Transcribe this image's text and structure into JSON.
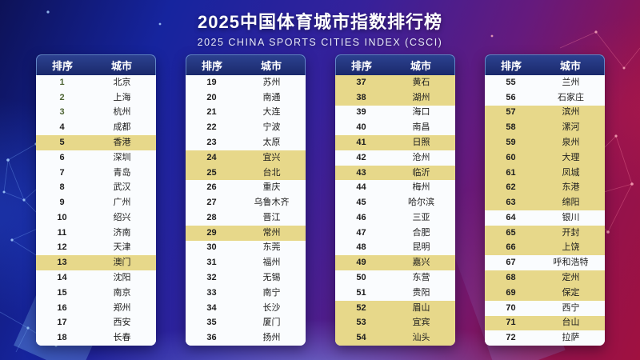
{
  "colors": {
    "title_text": "#ffffff",
    "header_text": "#ffffff",
    "header_bg_top": "#2c4190",
    "header_bg_bottom": "#1a296b",
    "row_bg": "#fafcfe",
    "row_text": "#1e1e1e",
    "highlight_bg": "#e7d88a",
    "top3_rank": "#4d6434"
  },
  "chart_data": {
    "type": "table",
    "title": "2025中国体育城市指数排行榜",
    "subtitle": "2025 CHINA SPORTS CITIES INDEX (CSCI)",
    "columns": [
      "排序",
      "城市"
    ],
    "legend_note": "mark: 'gold' = yellow highlighted row, 'top' = green rank number",
    "tables": [
      {
        "rows": [
          {
            "rank": "1",
            "city": "北京",
            "mark": "top"
          },
          {
            "rank": "2",
            "city": "上海",
            "mark": "top"
          },
          {
            "rank": "3",
            "city": "杭州",
            "mark": "top"
          },
          {
            "rank": "4",
            "city": "成都",
            "mark": ""
          },
          {
            "rank": "5",
            "city": "香港",
            "mark": "gold"
          },
          {
            "rank": "6",
            "city": "深圳",
            "mark": ""
          },
          {
            "rank": "7",
            "city": "青岛",
            "mark": ""
          },
          {
            "rank": "8",
            "city": "武汉",
            "mark": ""
          },
          {
            "rank": "9",
            "city": "广州",
            "mark": ""
          },
          {
            "rank": "10",
            "city": "绍兴",
            "mark": ""
          },
          {
            "rank": "11",
            "city": "济南",
            "mark": ""
          },
          {
            "rank": "12",
            "city": "天津",
            "mark": ""
          },
          {
            "rank": "13",
            "city": "澳门",
            "mark": "gold"
          },
          {
            "rank": "14",
            "city": "沈阳",
            "mark": ""
          },
          {
            "rank": "15",
            "city": "南京",
            "mark": ""
          },
          {
            "rank": "16",
            "city": "郑州",
            "mark": ""
          },
          {
            "rank": "17",
            "city": "西安",
            "mark": ""
          },
          {
            "rank": "18",
            "city": "长春",
            "mark": ""
          }
        ]
      },
      {
        "rows": [
          {
            "rank": "19",
            "city": "苏州",
            "mark": ""
          },
          {
            "rank": "20",
            "city": "南通",
            "mark": ""
          },
          {
            "rank": "21",
            "city": "大连",
            "mark": ""
          },
          {
            "rank": "22",
            "city": "宁波",
            "mark": ""
          },
          {
            "rank": "23",
            "city": "太原",
            "mark": ""
          },
          {
            "rank": "24",
            "city": "宜兴",
            "mark": "gold"
          },
          {
            "rank": "25",
            "city": "台北",
            "mark": "gold"
          },
          {
            "rank": "26",
            "city": "重庆",
            "mark": ""
          },
          {
            "rank": "27",
            "city": "乌鲁木齐",
            "mark": ""
          },
          {
            "rank": "28",
            "city": "晋江",
            "mark": ""
          },
          {
            "rank": "29",
            "city": "常州",
            "mark": "gold"
          },
          {
            "rank": "30",
            "city": "东莞",
            "mark": ""
          },
          {
            "rank": "31",
            "city": "福州",
            "mark": ""
          },
          {
            "rank": "32",
            "city": "无锡",
            "mark": ""
          },
          {
            "rank": "33",
            "city": "南宁",
            "mark": ""
          },
          {
            "rank": "34",
            "city": "长沙",
            "mark": ""
          },
          {
            "rank": "35",
            "city": "厦门",
            "mark": ""
          },
          {
            "rank": "36",
            "city": "扬州",
            "mark": ""
          }
        ]
      },
      {
        "rows": [
          {
            "rank": "37",
            "city": "黄石",
            "mark": "gold"
          },
          {
            "rank": "38",
            "city": "湖州",
            "mark": "gold"
          },
          {
            "rank": "39",
            "city": "海口",
            "mark": ""
          },
          {
            "rank": "40",
            "city": "南昌",
            "mark": ""
          },
          {
            "rank": "41",
            "city": "日照",
            "mark": "gold"
          },
          {
            "rank": "42",
            "city": "沧州",
            "mark": ""
          },
          {
            "rank": "43",
            "city": "临沂",
            "mark": "gold"
          },
          {
            "rank": "44",
            "city": "梅州",
            "mark": ""
          },
          {
            "rank": "45",
            "city": "哈尔滨",
            "mark": ""
          },
          {
            "rank": "46",
            "city": "三亚",
            "mark": ""
          },
          {
            "rank": "47",
            "city": "合肥",
            "mark": ""
          },
          {
            "rank": "48",
            "city": "昆明",
            "mark": ""
          },
          {
            "rank": "49",
            "city": "嘉兴",
            "mark": "gold"
          },
          {
            "rank": "50",
            "city": "东营",
            "mark": ""
          },
          {
            "rank": "51",
            "city": "贵阳",
            "mark": ""
          },
          {
            "rank": "52",
            "city": "眉山",
            "mark": "gold"
          },
          {
            "rank": "53",
            "city": "宜宾",
            "mark": "gold"
          },
          {
            "rank": "54",
            "city": "汕头",
            "mark": "gold"
          }
        ]
      },
      {
        "rows": [
          {
            "rank": "55",
            "city": "兰州",
            "mark": ""
          },
          {
            "rank": "56",
            "city": "石家庄",
            "mark": ""
          },
          {
            "rank": "57",
            "city": "滨州",
            "mark": "gold"
          },
          {
            "rank": "58",
            "city": "漯河",
            "mark": "gold"
          },
          {
            "rank": "59",
            "city": "泉州",
            "mark": "gold"
          },
          {
            "rank": "60",
            "city": "大理",
            "mark": "gold"
          },
          {
            "rank": "61",
            "city": "凤城",
            "mark": "gold"
          },
          {
            "rank": "62",
            "city": "东港",
            "mark": "gold"
          },
          {
            "rank": "63",
            "city": "绵阳",
            "mark": "gold"
          },
          {
            "rank": "64",
            "city": "银川",
            "mark": ""
          },
          {
            "rank": "65",
            "city": "开封",
            "mark": "gold"
          },
          {
            "rank": "66",
            "city": "上饶",
            "mark": "gold"
          },
          {
            "rank": "67",
            "city": "呼和浩特",
            "mark": ""
          },
          {
            "rank": "68",
            "city": "定州",
            "mark": "gold"
          },
          {
            "rank": "69",
            "city": "保定",
            "mark": "gold"
          },
          {
            "rank": "70",
            "city": "西宁",
            "mark": ""
          },
          {
            "rank": "71",
            "city": "台山",
            "mark": "gold"
          },
          {
            "rank": "72",
            "city": "拉萨",
            "mark": ""
          }
        ]
      }
    ]
  }
}
